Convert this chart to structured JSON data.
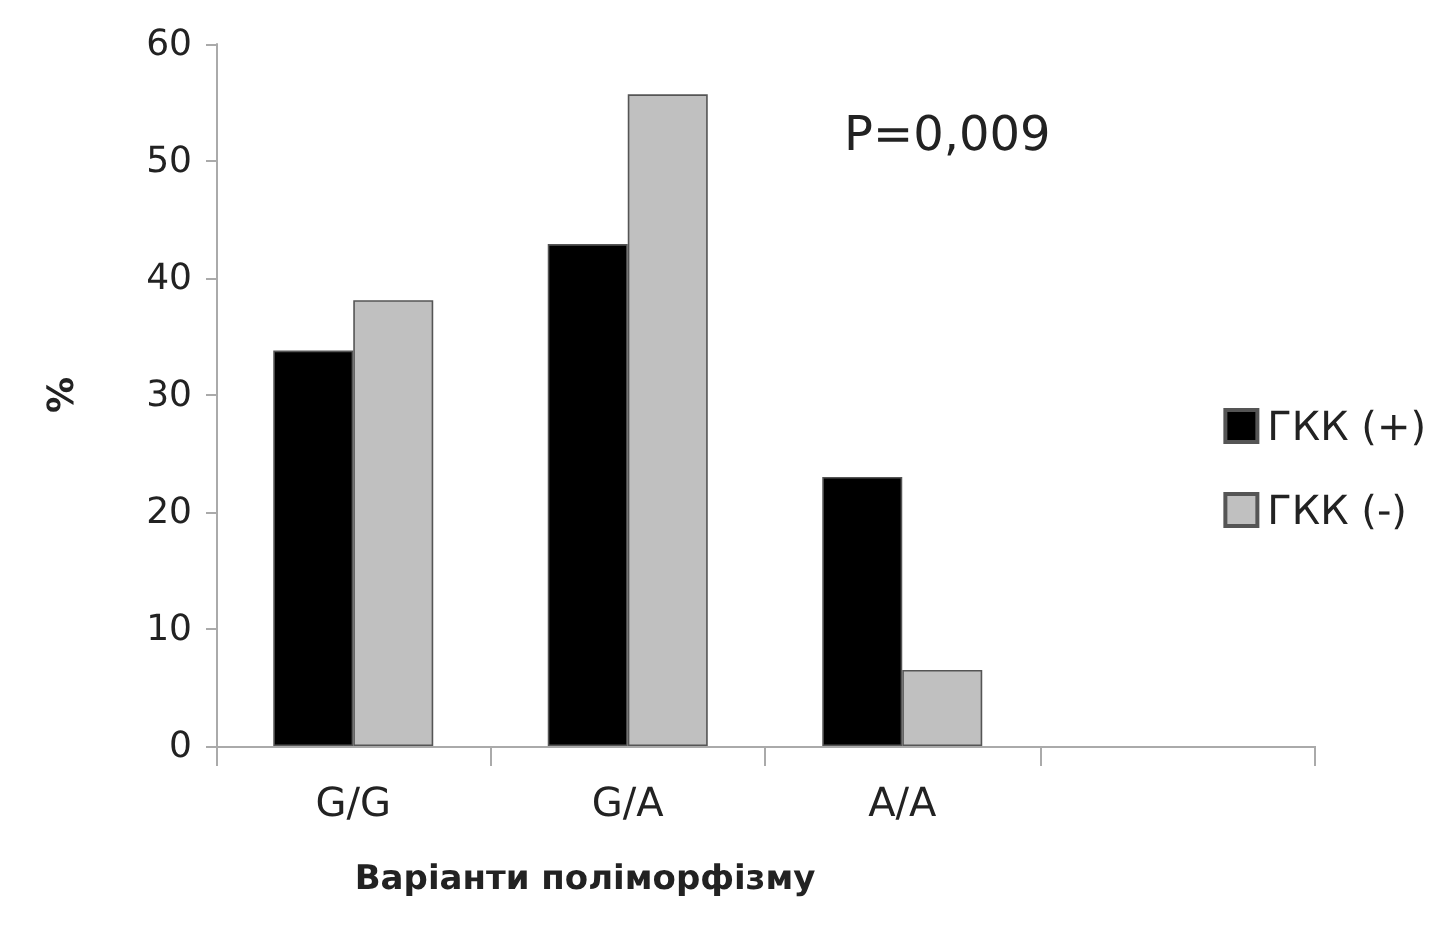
{
  "chart_data": {
    "type": "bar",
    "xlabel": "Варіанти поліморфізму",
    "ylabel": "%",
    "categories": [
      "G/G",
      "G/A",
      "A/A",
      null
    ],
    "series": [
      {
        "name": "ГКК (+)",
        "color": "#000000",
        "values": [
          33.8,
          42.9,
          23,
          null
        ]
      },
      {
        "name": "ГКК (-)",
        "color": "#c0c0c0",
        "values": [
          38.1,
          55.7,
          6.5,
          null
        ]
      }
    ],
    "ylim": [
      0,
      60
    ],
    "yticks": [
      0,
      10,
      20,
      30,
      40,
      50,
      60
    ],
    "grid": false,
    "legend": "right",
    "annotations": [
      "P=0,009"
    ]
  }
}
